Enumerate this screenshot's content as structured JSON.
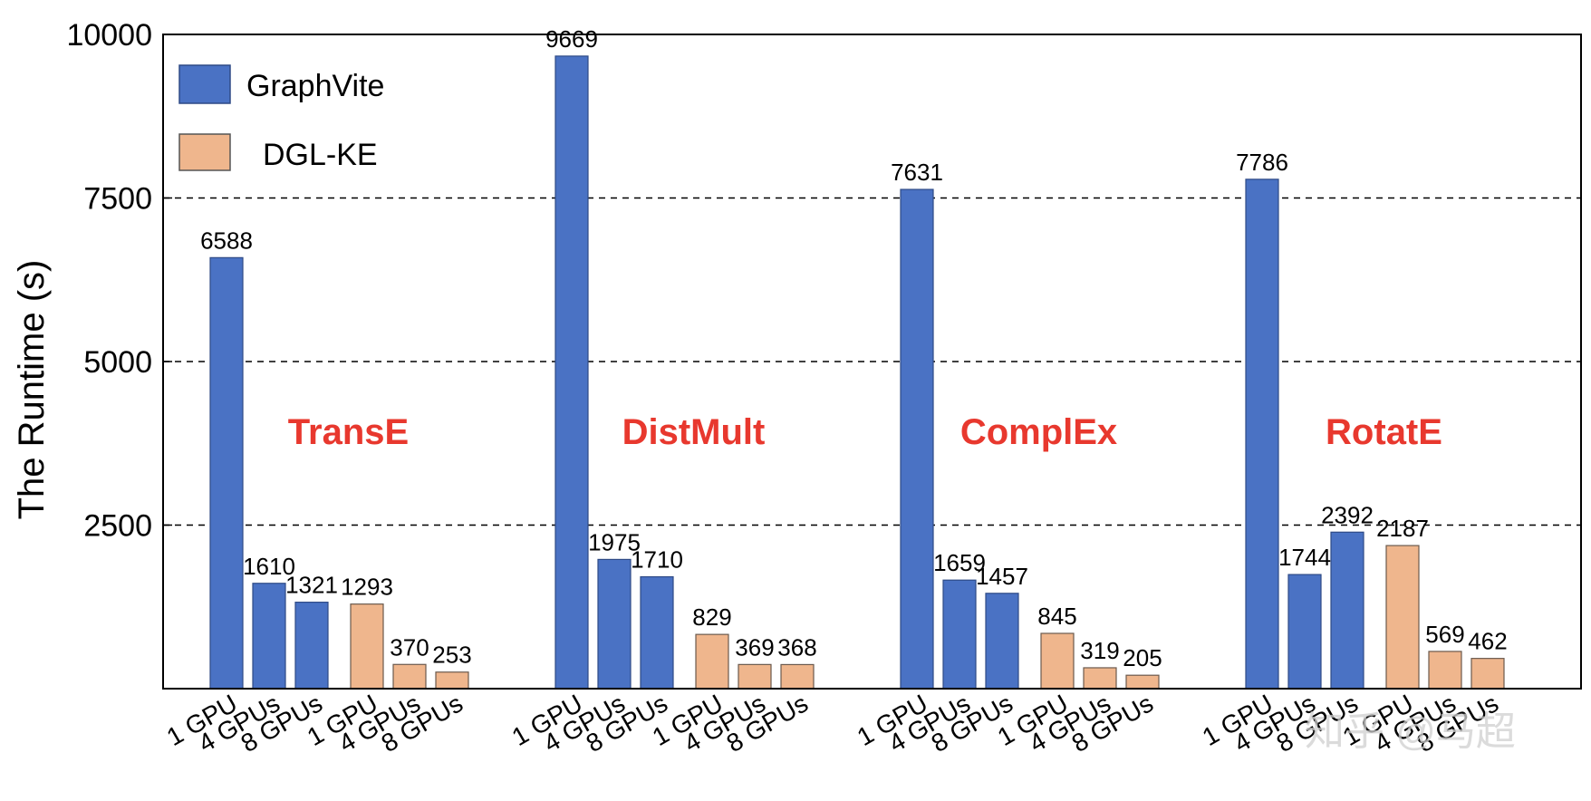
{
  "chart_data": {
    "type": "bar",
    "title": "",
    "xlabel": "",
    "ylabel": "The Runtime (s)",
    "ylim": [
      0,
      10000
    ],
    "yticks": [
      2500,
      5000,
      7500,
      10000
    ],
    "grid": "horizontal dashed at 2500, 5000, 7500",
    "legend_position": "top-left",
    "legend": [
      {
        "name": "GraphVite",
        "color": "#4a72c4"
      },
      {
        "name": "DGL-KE",
        "color": "#efb68d"
      }
    ],
    "bar_colors": {
      "GraphVite": "#4a72c4",
      "DGL-KE": "#efb68d"
    },
    "model_label_color": "#e8382e",
    "categories": [
      "1 GPU",
      "4 GPUs",
      "8 GPUs",
      "1 GPU",
      "4 GPUs",
      "8 GPUs"
    ],
    "groups": [
      {
        "model": "TransE",
        "bars": [
          {
            "series": "GraphVite",
            "x_label": "1 GPU",
            "value": 6588,
            "label": "6588"
          },
          {
            "series": "GraphVite",
            "x_label": "4 GPUs",
            "value": 1610,
            "label": "1610"
          },
          {
            "series": "GraphVite",
            "x_label": "8 GPUs",
            "value": 1321,
            "label": "1321"
          },
          {
            "series": "DGL-KE",
            "x_label": "1 GPU",
            "value": 1293,
            "label": "1293"
          },
          {
            "series": "DGL-KE",
            "x_label": "4 GPUs",
            "value": 370,
            "label": "370"
          },
          {
            "series": "DGL-KE",
            "x_label": "8 GPUs",
            "value": 253,
            "label": "253"
          }
        ]
      },
      {
        "model": "DistMult",
        "bars": [
          {
            "series": "GraphVite",
            "x_label": "1 GPU",
            "value": 9669,
            "label": "9669"
          },
          {
            "series": "GraphVite",
            "x_label": "4 GPUs",
            "value": 1975,
            "label": "1975"
          },
          {
            "series": "GraphVite",
            "x_label": "8 GPUs",
            "value": 1710,
            "label": "1710"
          },
          {
            "series": "DGL-KE",
            "x_label": "1 GPU",
            "value": 829,
            "label": "829"
          },
          {
            "series": "DGL-KE",
            "x_label": "4 GPUs",
            "value": 369,
            "label": "369"
          },
          {
            "series": "DGL-KE",
            "x_label": "8 GPUs",
            "value": 368,
            "label": "368"
          }
        ]
      },
      {
        "model": "ComplEx",
        "bars": [
          {
            "series": "GraphVite",
            "x_label": "1 GPU",
            "value": 7631,
            "label": "7631"
          },
          {
            "series": "GraphVite",
            "x_label": "4 GPUs",
            "value": 1659,
            "label": "1659"
          },
          {
            "series": "GraphVite",
            "x_label": "8 GPUs",
            "value": 1457,
            "label": "1457"
          },
          {
            "series": "DGL-KE",
            "x_label": "1 GPU",
            "value": 845,
            "label": "845"
          },
          {
            "series": "DGL-KE",
            "x_label": "4 GPUs",
            "value": 319,
            "label": "319"
          },
          {
            "series": "DGL-KE",
            "x_label": "8 GPUs",
            "value": 205,
            "label": "205"
          }
        ]
      },
      {
        "model": "RotatE",
        "bars": [
          {
            "series": "GraphVite",
            "x_label": "1 GPU",
            "value": 7786,
            "label": "7786"
          },
          {
            "series": "GraphVite",
            "x_label": "4 GPUs",
            "value": 1744,
            "label": "1744"
          },
          {
            "series": "GraphVite",
            "x_label": "8 GPUs",
            "value": 2392,
            "label": "2392"
          },
          {
            "series": "DGL-KE",
            "x_label": "1 GPU",
            "value": 2187,
            "label": "2187"
          },
          {
            "series": "DGL-KE",
            "x_label": "4 GPUs",
            "value": 569,
            "label": "569"
          },
          {
            "series": "DGL-KE",
            "x_label": "8 GPUs",
            "value": 462,
            "label": "462"
          }
        ]
      }
    ]
  },
  "watermark": "知乎 @马超"
}
